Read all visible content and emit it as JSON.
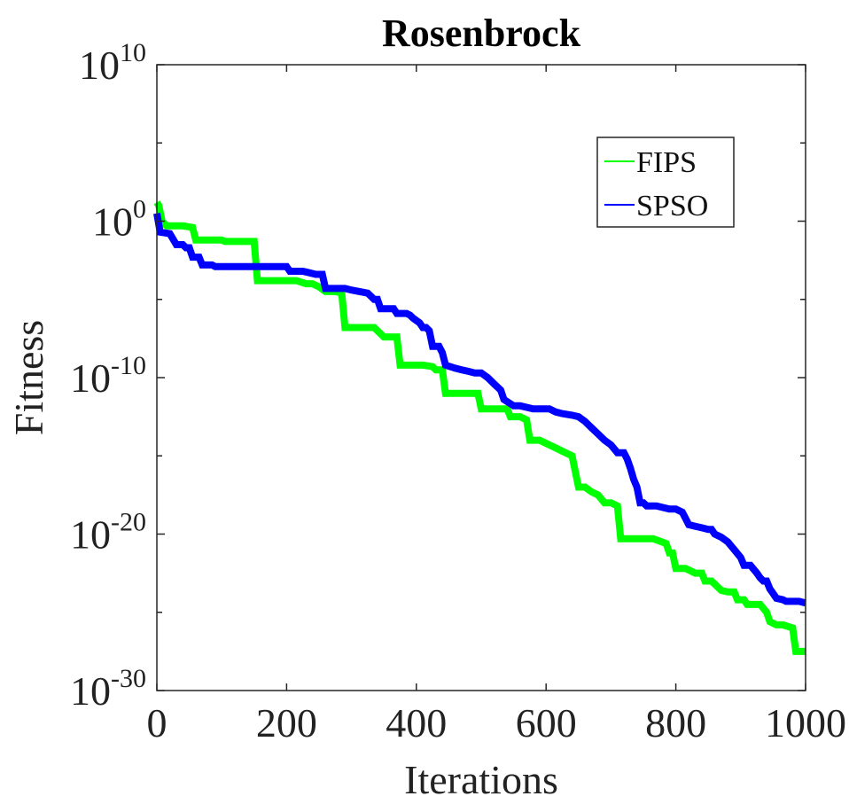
{
  "chart_data": {
    "type": "line",
    "title": "Rosenbrock",
    "xlabel": "Iterations",
    "ylabel": "Fitness",
    "xlim": [
      0,
      1000
    ],
    "ylim": [
      1e-30,
      10000000000.0
    ],
    "yscale": "log",
    "xticks": [
      "0",
      "200",
      "400",
      "600",
      "800",
      "1000"
    ],
    "yticks": [
      {
        "base": "10",
        "exp": "10",
        "value": 10
      },
      {
        "base": "10",
        "exp": "0",
        "value": 0
      },
      {
        "base": "10",
        "exp": "-10",
        "value": -10
      },
      {
        "base": "10",
        "exp": "-20",
        "value": -20
      },
      {
        "base": "10",
        "exp": "-30",
        "value": -30
      }
    ],
    "grid": false,
    "legend": "top-right",
    "series": [
      {
        "name": "FIPS",
        "color": "#00ff00",
        "log10_values": [
          [
            0,
            1.2
          ],
          [
            3,
            1.0
          ],
          [
            8,
            0.0
          ],
          [
            15,
            -0.3
          ],
          [
            40,
            -0.3
          ],
          [
            55,
            -0.4
          ],
          [
            60,
            -1.2
          ],
          [
            100,
            -1.2
          ],
          [
            105,
            -1.3
          ],
          [
            150,
            -1.3
          ],
          [
            155,
            -3.8
          ],
          [
            215,
            -3.8
          ],
          [
            230,
            -4.0
          ],
          [
            240,
            -4.0
          ],
          [
            250,
            -4.2
          ],
          [
            260,
            -4.5
          ],
          [
            275,
            -4.5
          ],
          [
            285,
            -4.6
          ],
          [
            290,
            -6.8
          ],
          [
            335,
            -6.8
          ],
          [
            350,
            -7.4
          ],
          [
            370,
            -7.4
          ],
          [
            375,
            -9.2
          ],
          [
            410,
            -9.2
          ],
          [
            425,
            -9.3
          ],
          [
            430,
            -9.5
          ],
          [
            440,
            -9.5
          ],
          [
            445,
            -11.0
          ],
          [
            495,
            -11.0
          ],
          [
            500,
            -12.0
          ],
          [
            540,
            -12.0
          ],
          [
            545,
            -12.5
          ],
          [
            560,
            -12.5
          ],
          [
            570,
            -12.7
          ],
          [
            575,
            -14.0
          ],
          [
            590,
            -14.0
          ],
          [
            600,
            -14.2
          ],
          [
            615,
            -14.5
          ],
          [
            625,
            -14.7
          ],
          [
            640,
            -15.0
          ],
          [
            650,
            -17.0
          ],
          [
            660,
            -17.0
          ],
          [
            670,
            -17.3
          ],
          [
            680,
            -17.5
          ],
          [
            690,
            -18.0
          ],
          [
            700,
            -18.0
          ],
          [
            710,
            -18.2
          ],
          [
            715,
            -20.3
          ],
          [
            765,
            -20.3
          ],
          [
            785,
            -20.6
          ],
          [
            790,
            -21.2
          ],
          [
            795,
            -21.2
          ],
          [
            800,
            -22.2
          ],
          [
            815,
            -22.2
          ],
          [
            830,
            -22.5
          ],
          [
            840,
            -22.5
          ],
          [
            845,
            -23.0
          ],
          [
            855,
            -23.0
          ],
          [
            870,
            -23.6
          ],
          [
            880,
            -23.7
          ],
          [
            890,
            -23.7
          ],
          [
            895,
            -24.2
          ],
          [
            905,
            -24.2
          ],
          [
            910,
            -24.5
          ],
          [
            930,
            -24.5
          ],
          [
            940,
            -25.0
          ],
          [
            945,
            -25.6
          ],
          [
            950,
            -25.7
          ],
          [
            955,
            -25.8
          ],
          [
            965,
            -25.8
          ],
          [
            980,
            -26.0
          ],
          [
            985,
            -27.5
          ],
          [
            1000,
            -27.5
          ]
        ]
      },
      {
        "name": "SPSO",
        "color": "#0000ff",
        "log10_values": [
          [
            0,
            0.5
          ],
          [
            5,
            -0.7
          ],
          [
            20,
            -0.8
          ],
          [
            30,
            -1.5
          ],
          [
            40,
            -1.5
          ],
          [
            45,
            -1.7
          ],
          [
            50,
            -1.7
          ],
          [
            55,
            -2.3
          ],
          [
            65,
            -2.3
          ],
          [
            70,
            -2.8
          ],
          [
            80,
            -2.8
          ],
          [
            85,
            -2.8
          ],
          [
            90,
            -2.9
          ],
          [
            200,
            -2.9
          ],
          [
            205,
            -3.2
          ],
          [
            225,
            -3.2
          ],
          [
            235,
            -3.3
          ],
          [
            245,
            -3.4
          ],
          [
            255,
            -3.4
          ],
          [
            260,
            -4.3
          ],
          [
            290,
            -4.3
          ],
          [
            300,
            -4.4
          ],
          [
            325,
            -4.6
          ],
          [
            330,
            -4.8
          ],
          [
            335,
            -5.0
          ],
          [
            340,
            -5.0
          ],
          [
            345,
            -5.6
          ],
          [
            365,
            -5.6
          ],
          [
            370,
            -5.9
          ],
          [
            385,
            -5.9
          ],
          [
            390,
            -6.0
          ],
          [
            395,
            -6.2
          ],
          [
            405,
            -6.5
          ],
          [
            410,
            -6.8
          ],
          [
            415,
            -6.8
          ],
          [
            420,
            -7.0
          ],
          [
            425,
            -8.0
          ],
          [
            435,
            -8.0
          ],
          [
            440,
            -8.4
          ],
          [
            445,
            -9.2
          ],
          [
            460,
            -9.4
          ],
          [
            470,
            -9.5
          ],
          [
            480,
            -9.6
          ],
          [
            490,
            -9.7
          ],
          [
            500,
            -9.7
          ],
          [
            510,
            -10.0
          ],
          [
            520,
            -10.4
          ],
          [
            530,
            -10.8
          ],
          [
            535,
            -11.4
          ],
          [
            550,
            -11.8
          ],
          [
            560,
            -11.8
          ],
          [
            570,
            -11.9
          ],
          [
            580,
            -12.0
          ],
          [
            590,
            -12.0
          ],
          [
            605,
            -12.0
          ],
          [
            615,
            -12.2
          ],
          [
            625,
            -12.3
          ],
          [
            640,
            -12.4
          ],
          [
            650,
            -12.5
          ],
          [
            660,
            -12.8
          ],
          [
            670,
            -13.2
          ],
          [
            680,
            -13.6
          ],
          [
            690,
            -14.0
          ],
          [
            700,
            -14.3
          ],
          [
            710,
            -14.8
          ],
          [
            720,
            -14.8
          ],
          [
            725,
            -15.2
          ],
          [
            730,
            -15.8
          ],
          [
            735,
            -16.5
          ],
          [
            740,
            -17.0
          ],
          [
            745,
            -18.0
          ],
          [
            750,
            -18.0
          ],
          [
            755,
            -18.2
          ],
          [
            770,
            -18.2
          ],
          [
            780,
            -18.3
          ],
          [
            790,
            -18.4
          ],
          [
            800,
            -18.4
          ],
          [
            810,
            -18.6
          ],
          [
            815,
            -19.0
          ],
          [
            820,
            -19.4
          ],
          [
            830,
            -19.5
          ],
          [
            840,
            -19.6
          ],
          [
            850,
            -19.7
          ],
          [
            855,
            -19.7
          ],
          [
            860,
            -20.0
          ],
          [
            870,
            -20.2
          ],
          [
            880,
            -20.5
          ],
          [
            890,
            -21.0
          ],
          [
            900,
            -21.5
          ],
          [
            905,
            -22.0
          ],
          [
            915,
            -22.0
          ],
          [
            925,
            -22.5
          ],
          [
            930,
            -22.8
          ],
          [
            935,
            -23.0
          ],
          [
            940,
            -23.0
          ],
          [
            945,
            -23.5
          ],
          [
            950,
            -23.8
          ],
          [
            955,
            -24.1
          ],
          [
            965,
            -24.2
          ],
          [
            970,
            -24.3
          ],
          [
            990,
            -24.3
          ],
          [
            1000,
            -24.4
          ]
        ]
      }
    ]
  }
}
